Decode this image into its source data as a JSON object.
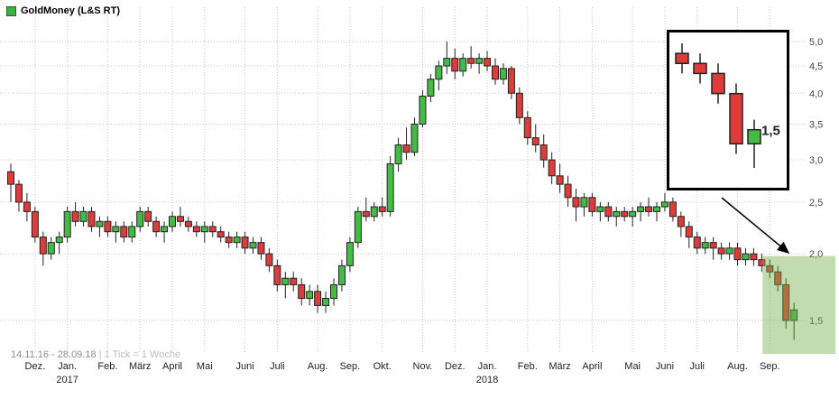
{
  "legend": {
    "label": "GoldMoney (L&S RT)",
    "marker_color": "#3cb043"
  },
  "footer": {
    "range_text": "14.11.16 - 28.09.18",
    "separator": " | ",
    "tick_text": "1 Tick = 1 Woche"
  },
  "inset": {
    "label": "1,5",
    "start_index": 93,
    "count": 5
  },
  "colors": {
    "up_fill": "#44bb44",
    "down_fill": "#e03b3b",
    "body_border": "#222222",
    "wick": "#222222",
    "grid": "#c9c9c9",
    "axis_text": "#444444",
    "month_text": "#222222",
    "highlight": "#76b24e"
  },
  "chart_data": {
    "type": "candlestick",
    "title": "GoldMoney (L&S RT)",
    "period": "weekly",
    "date_range": "14.11.16 - 28.09.18",
    "tick_note": "1 Tick = 1 Woche",
    "y_scale": "log",
    "ylim": [
      1.3,
      5.2
    ],
    "y_ticks": [
      5.0,
      4.5,
      4.0,
      3.5,
      3.0,
      2.5,
      2.0,
      1.5
    ],
    "y_tick_labels": [
      "5,0",
      "4,5",
      "4,0",
      "3,5",
      "3,0",
      "2,5",
      "2,0",
      "1,5"
    ],
    "x_months": [
      {
        "label": "Dez.",
        "index": 3
      },
      {
        "label": "Jan.",
        "index": 7
      },
      {
        "label": "Feb.",
        "index": 12
      },
      {
        "label": "März",
        "index": 16
      },
      {
        "label": "April",
        "index": 20
      },
      {
        "label": "Mai",
        "index": 24
      },
      {
        "label": "Juni",
        "index": 29
      },
      {
        "label": "Juli",
        "index": 33
      },
      {
        "label": "Aug.",
        "index": 38
      },
      {
        "label": "Sep.",
        "index": 42
      },
      {
        "label": "Okt.",
        "index": 46
      },
      {
        "label": "Nov.",
        "index": 51
      },
      {
        "label": "Dez.",
        "index": 55
      },
      {
        "label": "Jan.",
        "index": 59
      },
      {
        "label": "Feb.",
        "index": 64
      },
      {
        "label": "März",
        "index": 68
      },
      {
        "label": "April",
        "index": 72
      },
      {
        "label": "Mai",
        "index": 77
      },
      {
        "label": "Juni",
        "index": 81
      },
      {
        "label": "Juli",
        "index": 85
      },
      {
        "label": "Aug.",
        "index": 90
      },
      {
        "label": "Sep.",
        "index": 94
      }
    ],
    "years": [
      {
        "label": "2017",
        "index": 7
      },
      {
        "label": "2018",
        "index": 59
      }
    ],
    "highlight": {
      "start_index": 94,
      "end_index": 97
    },
    "candles": [
      [
        2.85,
        2.95,
        2.5,
        2.7
      ],
      [
        2.7,
        2.75,
        2.4,
        2.5
      ],
      [
        2.5,
        2.6,
        2.3,
        2.4
      ],
      [
        2.4,
        2.45,
        2.1,
        2.15
      ],
      [
        2.15,
        2.2,
        1.9,
        2.0
      ],
      [
        2.0,
        2.15,
        1.95,
        2.1
      ],
      [
        2.1,
        2.2,
        2.0,
        2.15
      ],
      [
        2.15,
        2.45,
        2.1,
        2.4
      ],
      [
        2.4,
        2.5,
        2.25,
        2.3
      ],
      [
        2.3,
        2.45,
        2.25,
        2.4
      ],
      [
        2.4,
        2.45,
        2.2,
        2.25
      ],
      [
        2.25,
        2.35,
        2.15,
        2.3
      ],
      [
        2.3,
        2.35,
        2.15,
        2.2
      ],
      [
        2.2,
        2.3,
        2.1,
        2.25
      ],
      [
        2.25,
        2.3,
        2.1,
        2.15
      ],
      [
        2.15,
        2.3,
        2.1,
        2.25
      ],
      [
        2.25,
        2.45,
        2.2,
        2.4
      ],
      [
        2.4,
        2.45,
        2.25,
        2.3
      ],
      [
        2.3,
        2.35,
        2.15,
        2.2
      ],
      [
        2.2,
        2.3,
        2.1,
        2.25
      ],
      [
        2.25,
        2.4,
        2.2,
        2.35
      ],
      [
        2.35,
        2.45,
        2.25,
        2.3
      ],
      [
        2.3,
        2.35,
        2.2,
        2.25
      ],
      [
        2.25,
        2.3,
        2.15,
        2.2
      ],
      [
        2.2,
        2.3,
        2.1,
        2.25
      ],
      [
        2.25,
        2.3,
        2.15,
        2.2
      ],
      [
        2.2,
        2.25,
        2.1,
        2.15
      ],
      [
        2.15,
        2.2,
        2.05,
        2.1
      ],
      [
        2.1,
        2.2,
        2.05,
        2.15
      ],
      [
        2.15,
        2.2,
        2.0,
        2.05
      ],
      [
        2.05,
        2.15,
        2.0,
        2.1
      ],
      [
        2.1,
        2.15,
        1.95,
        2.0
      ],
      [
        2.0,
        2.05,
        1.85,
        1.9
      ],
      [
        1.9,
        1.95,
        1.7,
        1.75
      ],
      [
        1.75,
        1.85,
        1.65,
        1.8
      ],
      [
        1.8,
        1.85,
        1.7,
        1.75
      ],
      [
        1.75,
        1.8,
        1.6,
        1.65
      ],
      [
        1.65,
        1.75,
        1.6,
        1.7
      ],
      [
        1.7,
        1.75,
        1.55,
        1.6
      ],
      [
        1.6,
        1.7,
        1.55,
        1.65
      ],
      [
        1.65,
        1.8,
        1.6,
        1.75
      ],
      [
        1.75,
        1.95,
        1.7,
        1.9
      ],
      [
        1.9,
        2.15,
        1.85,
        2.1
      ],
      [
        2.1,
        2.45,
        2.05,
        2.4
      ],
      [
        2.4,
        2.55,
        2.3,
        2.35
      ],
      [
        2.35,
        2.5,
        2.3,
        2.45
      ],
      [
        2.45,
        2.55,
        2.35,
        2.4
      ],
      [
        2.4,
        3.05,
        2.35,
        2.95
      ],
      [
        2.95,
        3.3,
        2.85,
        3.2
      ],
      [
        3.2,
        3.45,
        3.0,
        3.1
      ],
      [
        3.1,
        3.6,
        3.05,
        3.5
      ],
      [
        3.5,
        4.05,
        3.45,
        3.95
      ],
      [
        3.95,
        4.35,
        3.85,
        4.25
      ],
      [
        4.25,
        4.6,
        4.05,
        4.5
      ],
      [
        4.5,
        5.0,
        4.35,
        4.65
      ],
      [
        4.65,
        4.85,
        4.25,
        4.4
      ],
      [
        4.4,
        4.75,
        4.3,
        4.65
      ],
      [
        4.65,
        4.9,
        4.45,
        4.55
      ],
      [
        4.55,
        4.75,
        4.35,
        4.65
      ],
      [
        4.65,
        4.8,
        4.4,
        4.5
      ],
      [
        4.5,
        4.65,
        4.15,
        4.25
      ],
      [
        4.25,
        4.55,
        4.15,
        4.45
      ],
      [
        4.45,
        4.5,
        3.9,
        4.0
      ],
      [
        4.0,
        4.1,
        3.5,
        3.6
      ],
      [
        3.6,
        3.7,
        3.2,
        3.3
      ],
      [
        3.3,
        3.5,
        3.1,
        3.2
      ],
      [
        3.2,
        3.35,
        2.9,
        3.0
      ],
      [
        3.0,
        3.1,
        2.7,
        2.8
      ],
      [
        2.8,
        2.95,
        2.6,
        2.7
      ],
      [
        2.7,
        2.8,
        2.45,
        2.55
      ],
      [
        2.55,
        2.65,
        2.3,
        2.45
      ],
      [
        2.45,
        2.6,
        2.35,
        2.55
      ],
      [
        2.55,
        2.6,
        2.35,
        2.4
      ],
      [
        2.4,
        2.5,
        2.3,
        2.45
      ],
      [
        2.45,
        2.5,
        2.3,
        2.35
      ],
      [
        2.35,
        2.45,
        2.25,
        2.4
      ],
      [
        2.4,
        2.45,
        2.3,
        2.35
      ],
      [
        2.35,
        2.45,
        2.25,
        2.4
      ],
      [
        2.4,
        2.5,
        2.3,
        2.45
      ],
      [
        2.45,
        2.55,
        2.35,
        2.4
      ],
      [
        2.4,
        2.5,
        2.3,
        2.45
      ],
      [
        2.45,
        2.6,
        2.4,
        2.5
      ],
      [
        2.5,
        2.55,
        2.3,
        2.35
      ],
      [
        2.35,
        2.4,
        2.15,
        2.25
      ],
      [
        2.25,
        2.3,
        2.05,
        2.15
      ],
      [
        2.15,
        2.2,
        2.0,
        2.05
      ],
      [
        2.05,
        2.15,
        2.0,
        2.1
      ],
      [
        2.1,
        2.15,
        1.95,
        2.05
      ],
      [
        2.05,
        2.1,
        1.95,
        2.0
      ],
      [
        2.0,
        2.1,
        1.95,
        2.05
      ],
      [
        2.05,
        2.1,
        1.9,
        1.95
      ],
      [
        1.95,
        2.05,
        1.9,
        2.0
      ],
      [
        2.0,
        2.05,
        1.9,
        1.95
      ],
      [
        1.95,
        2.0,
        1.85,
        1.9
      ],
      [
        1.9,
        1.95,
        1.8,
        1.85
      ],
      [
        1.85,
        1.9,
        1.7,
        1.75
      ],
      [
        1.75,
        1.8,
        1.45,
        1.5
      ],
      [
        1.5,
        1.62,
        1.38,
        1.57
      ]
    ]
  }
}
